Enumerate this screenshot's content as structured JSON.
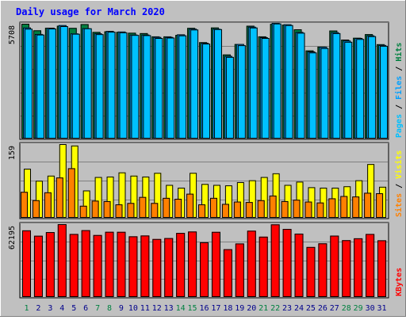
{
  "title": "Daily usage for March 2020",
  "colors": {
    "background": "#c0c0c0",
    "title": "#0000ff",
    "pages": "#00c0ff",
    "hits": "#008040",
    "files": "#00a0ff",
    "visits": "#ffff00",
    "sites": "#ff8000",
    "kbytes": "#ff0000",
    "weekend_label": "#008040",
    "weekday_label": "#00008b"
  },
  "chart_data": {
    "type": "bar",
    "title": "Daily usage for March 2020",
    "categories": [
      "1",
      "2",
      "3",
      "4",
      "5",
      "6",
      "7",
      "8",
      "9",
      "10",
      "11",
      "12",
      "13",
      "14",
      "15",
      "16",
      "17",
      "18",
      "19",
      "20",
      "21",
      "22",
      "23",
      "24",
      "25",
      "26",
      "27",
      "28",
      "29",
      "30",
      "31"
    ],
    "weekend_days": [
      "1",
      "7",
      "8",
      "14",
      "15",
      "21",
      "22",
      "28",
      "29"
    ],
    "panels": [
      {
        "name": "hits-files-pages",
        "y_max_label": "5708",
        "ylim": [
          0,
          5708
        ],
        "axis_labels": [
          "Pages",
          "Files",
          "Hits"
        ],
        "series": [
          {
            "name": "Hits",
            "values": [
              5708,
              5380,
              5508,
              5610,
              5500,
              5690,
              5300,
              5330,
              5300,
              5260,
              5240,
              5080,
              5080,
              5150,
              5500,
              4790,
              5520,
              4180,
              4700,
              5610,
              5080,
              5700,
              5660,
              5430,
              4380,
              4570,
              5370,
              4920,
              5010,
              5190,
              4690
            ]
          },
          {
            "name": "Files",
            "values": [
              5520,
              5200,
              5510,
              5640,
              5230,
              5490,
              5230,
              5350,
              5320,
              5170,
              5170,
              5050,
              5050,
              5180,
              5460,
              4760,
              5460,
              4110,
              4700,
              5560,
              5040,
              5750,
              5680,
              5300,
              4330,
              4560,
              5290,
              4870,
              5000,
              5130,
              4650
            ]
          },
          {
            "name": "Pages",
            "values": [
              5460,
              5170,
              5470,
              5590,
              5210,
              5480,
              5190,
              5310,
              5280,
              5150,
              5140,
              5000,
              5020,
              5130,
              5420,
              4720,
              5440,
              4060,
              4640,
              5520,
              5000,
              5720,
              5640,
              5260,
              4280,
              4500,
              5240,
              4810,
              4950,
              5090,
              4610
            ]
          }
        ]
      },
      {
        "name": "visits-sites",
        "y_max_label": "159",
        "ylim": [
          0,
          159
        ],
        "axis_labels": [
          "Sites",
          "Visits"
        ],
        "series": [
          {
            "name": "Visits",
            "values": [
              106,
              80,
              91,
              159,
              156,
              59,
              88,
              89,
              98,
              91,
              89,
              97,
              71,
              65,
              97,
              73,
              71,
              70,
              77,
              81,
              88,
              96,
              71,
              78,
              66,
              65,
              65,
              68,
              81,
              116,
              67
            ]
          },
          {
            "name": "Sites",
            "values": [
              56,
              38,
              55,
              87,
              107,
              26,
              37,
              36,
              29,
              32,
              45,
              32,
              43,
              41,
              52,
              29,
              43,
              30,
              35,
              34,
              38,
              48,
              36,
              39,
              35,
              33,
              42,
              47,
              46,
              54,
              53
            ]
          }
        ]
      },
      {
        "name": "kbytes",
        "y_max_label": "62195",
        "ylim": [
          0,
          62195
        ],
        "axis_labels": [
          "KBytes"
        ],
        "series": [
          {
            "name": "KBytes",
            "values": [
              56870,
              52300,
              55400,
              62195,
              53800,
              57050,
              52900,
              55650,
              55620,
              51800,
              52500,
              49500,
              50300,
              54700,
              55900,
              46700,
              55600,
              40800,
              45700,
              56600,
              51500,
              62000,
              58100,
              54100,
              42700,
              45800,
              52400,
              48500,
              50100,
              53800,
              48400
            ]
          }
        ]
      }
    ]
  }
}
